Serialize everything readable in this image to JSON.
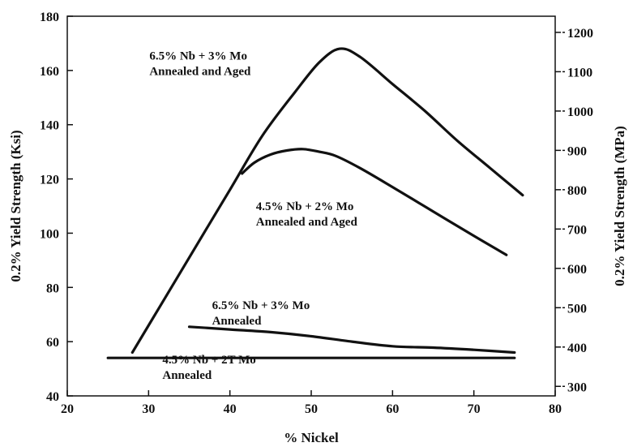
{
  "chart_data": {
    "type": "line",
    "title": "",
    "xlabel": "% Nickel",
    "ylabel": "0.2% Yield Strength (Ksi)",
    "ylabel_right": "0.2% Yield Strength (MPa)",
    "xlim": [
      20,
      80
    ],
    "ylim": [
      40,
      180
    ],
    "ylim_right_mpa": [
      276,
      1241
    ],
    "x_ticks": [
      "20",
      "30",
      "40",
      "50",
      "60",
      "70",
      "80"
    ],
    "y_ticks": [
      "40",
      "60",
      "80",
      "100",
      "120",
      "140",
      "160",
      "180"
    ],
    "y_ticks_right": [
      "300",
      "400",
      "500",
      "600",
      "700",
      "800",
      "900",
      "1000",
      "1100",
      "1200"
    ],
    "grid": false,
    "series": [
      {
        "name": "6.5% Nb + 3% Mo Annealed and Aged",
        "x": [
          28,
          32,
          36,
          40,
          44,
          48,
          51,
          53.5,
          56,
          60,
          64,
          68,
          72,
          76
        ],
        "y": [
          56,
          76,
          96,
          116,
          136,
          152,
          163,
          168,
          165,
          155,
          145,
          134,
          124,
          114
        ]
      },
      {
        "name": "4.5% Nb + 2% Mo Annealed and Aged",
        "x": [
          41.5,
          43,
          45,
          47,
          49,
          51,
          53,
          56,
          60,
          65,
          70,
          74
        ],
        "y": [
          122,
          126,
          129,
          130.5,
          131,
          130,
          128.5,
          124,
          117,
          108,
          99,
          92
        ]
      },
      {
        "name": "6.5% Nb + 3% Mo Annealed",
        "x": [
          35,
          40,
          45,
          50,
          55,
          60,
          65,
          70,
          75
        ],
        "y": [
          65.5,
          64.5,
          63.5,
          62,
          60,
          58.3,
          57.8,
          57,
          56
        ]
      },
      {
        "name": "4.5% Nb + 2T Mo Annealed",
        "x": [
          25,
          30,
          40,
          50,
          60,
          70,
          75
        ],
        "y": [
          54,
          54,
          54,
          54,
          54,
          54,
          54
        ]
      }
    ],
    "annotations": [
      {
        "line1": "6.5% Nb + 3% Mo",
        "line2": "Annealed and Aged",
        "x": 30.1,
        "y": 164
      },
      {
        "line1": "4.5% Nb + 2% Mo",
        "line2": "Annealed and Aged",
        "x": 43.2,
        "y": 108.5
      },
      {
        "line1": "6.5% Nb + 3% Mo",
        "line2": "Annealed",
        "x": 37.8,
        "y": 72
      },
      {
        "line1": "4.5% Nb + 2T Mo",
        "line2": "Annealed",
        "x": 31.7,
        "y": 52
      }
    ]
  }
}
